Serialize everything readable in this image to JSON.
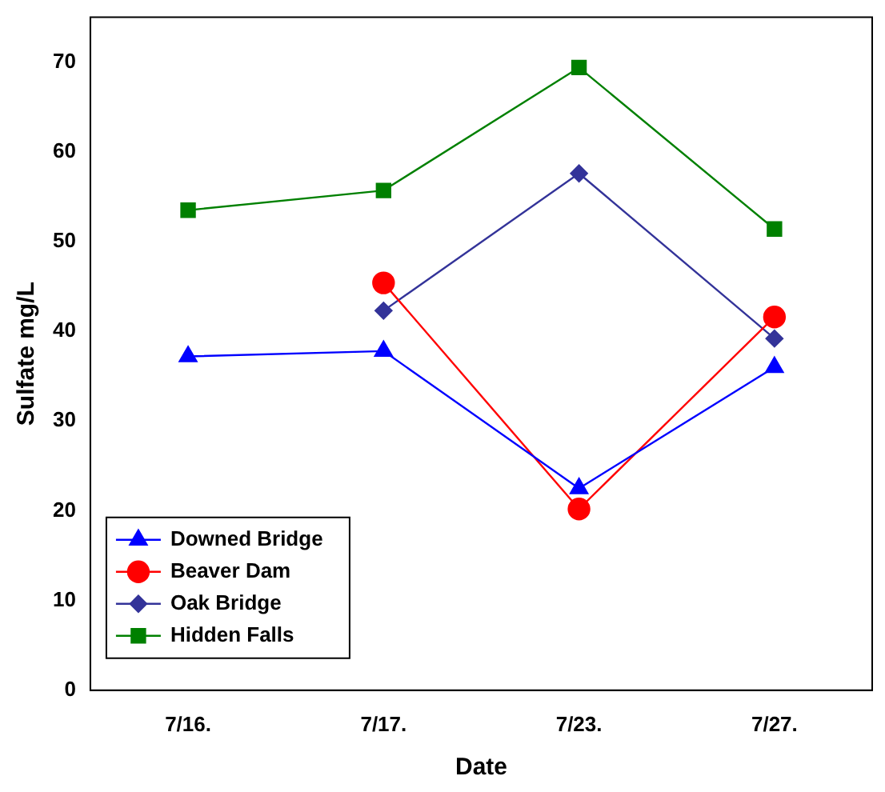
{
  "chart_data": {
    "type": "line",
    "xlabel": "Date",
    "ylabel": "Sulfate mg/L",
    "categories": [
      "7/16.",
      "7/17.",
      "7/23.",
      "7/27."
    ],
    "series": [
      {
        "name": "Downed Bridge",
        "color": "#0000ff",
        "marker": "triangle",
        "values": [
          37.2,
          37.8,
          22.5,
          36.0
        ]
      },
      {
        "name": "Beaver Dam",
        "color": "#ff0000",
        "marker": "circle",
        "values": [
          null,
          45.4,
          20.2,
          41.6
        ]
      },
      {
        "name": "Oak Bridge",
        "color": "#333399",
        "marker": "diamond",
        "values": [
          null,
          42.3,
          57.6,
          39.2
        ]
      },
      {
        "name": "Hidden Falls",
        "color": "#008000",
        "marker": "square",
        "values": [
          53.5,
          55.7,
          69.4,
          51.4
        ]
      }
    ],
    "ylim": [
      0,
      75
    ],
    "yticks": [
      0,
      10,
      20,
      30,
      40,
      50,
      60,
      70
    ],
    "grid": false,
    "legend": "bottom left"
  }
}
